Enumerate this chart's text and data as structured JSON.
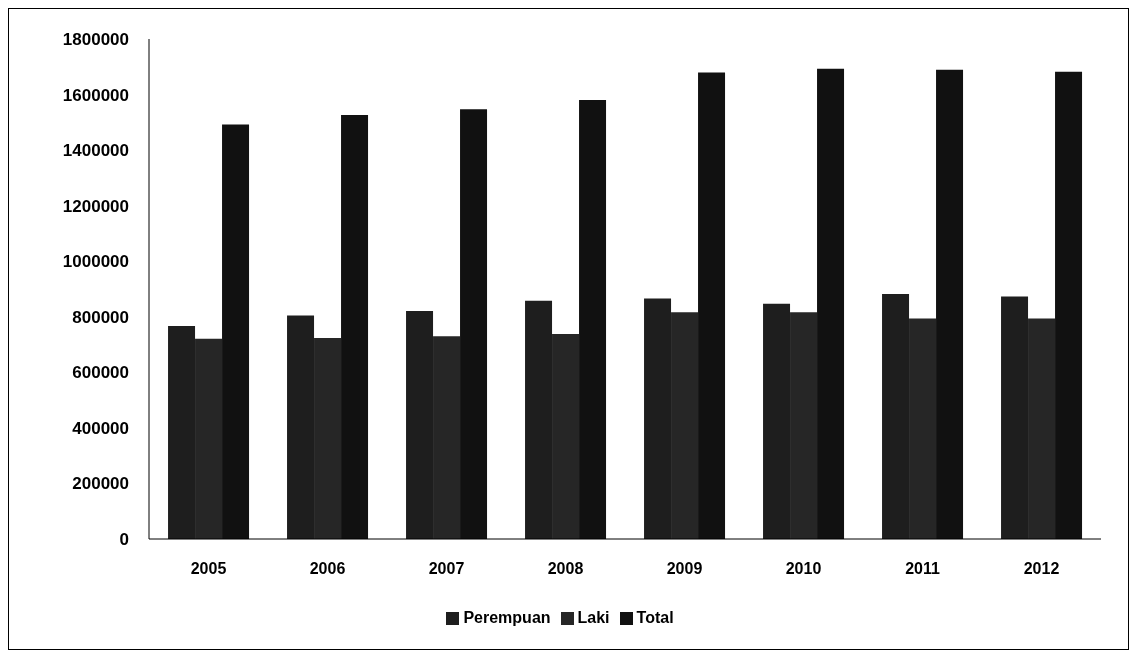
{
  "chart_data": {
    "type": "bar",
    "categories": [
      "2005",
      "2006",
      "2007",
      "2008",
      "2009",
      "2010",
      "2011",
      "2012"
    ],
    "series": [
      {
        "name": "Perempuan",
        "color": "#1e1e1e",
        "values": [
          767000,
          805000,
          821000,
          858000,
          866000,
          847000,
          882000,
          873000
        ]
      },
      {
        "name": "Laki",
        "color": "#262626",
        "values": [
          721000,
          724000,
          730000,
          738000,
          816000,
          816000,
          794000,
          794000
        ]
      },
      {
        "name": "Total",
        "color": "#111111",
        "values": [
          1492000,
          1526000,
          1547000,
          1580000,
          1679000,
          1693000,
          1689000,
          1682000
        ]
      }
    ],
    "ylim": [
      0,
      1800000
    ],
    "yticks": [
      0,
      200000,
      400000,
      600000,
      800000,
      1000000,
      1200000,
      1400000,
      1600000,
      1800000
    ],
    "grid": false,
    "legend": "bottom"
  }
}
